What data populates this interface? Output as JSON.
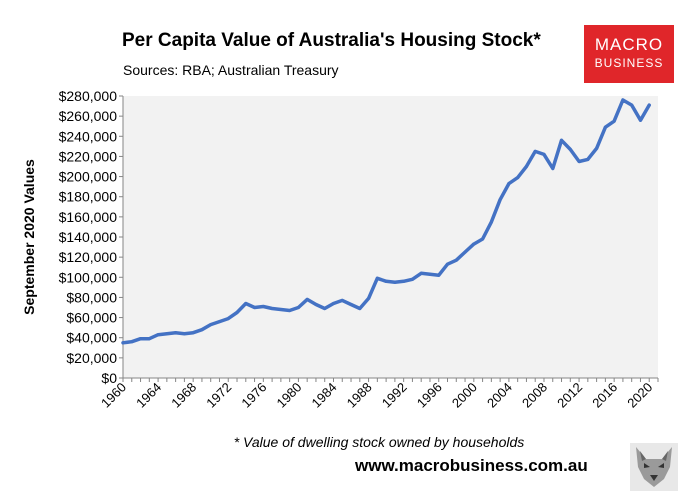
{
  "chart_data": {
    "type": "line",
    "title": "Per Capita Value of Australia's Housing Stock*",
    "subtitle": "Sources: RBA; Australian Treasury",
    "xlabel": "",
    "ylabel": "September 2020 Values",
    "footnote": "* Value of dwelling stock owned by households",
    "xlim": [
      1960,
      2021
    ],
    "ylim": [
      0,
      280000
    ],
    "ytick_labels": [
      "$0",
      "$20,000",
      "$40,000",
      "$60,000",
      "$80,000",
      "$100,000",
      "$120,000",
      "$140,000",
      "$160,000",
      "$180,000",
      "$200,000",
      "$220,000",
      "$240,000",
      "$260,000",
      "$280,000"
    ],
    "xtick_labels": [
      "1960",
      "1964",
      "1968",
      "1972",
      "1976",
      "1980",
      "1984",
      "1988",
      "1992",
      "1996",
      "2000",
      "2004",
      "2008",
      "2012",
      "2016",
      "2020"
    ],
    "grid": false,
    "legend": "none",
    "series_color": "#4472c4",
    "x": [
      1960,
      1961,
      1962,
      1963,
      1964,
      1965,
      1966,
      1967,
      1968,
      1969,
      1970,
      1971,
      1972,
      1973,
      1974,
      1975,
      1976,
      1977,
      1978,
      1979,
      1980,
      1981,
      1982,
      1983,
      1984,
      1985,
      1986,
      1987,
      1988,
      1989,
      1990,
      1991,
      1992,
      1993,
      1994,
      1995,
      1996,
      1997,
      1998,
      1999,
      2000,
      2001,
      2002,
      2003,
      2004,
      2005,
      2006,
      2007,
      2008,
      2009,
      2010,
      2011,
      2012,
      2013,
      2014,
      2015,
      2016,
      2017,
      2018,
      2019,
      2020
    ],
    "values": [
      35000,
      36000,
      39000,
      39000,
      43000,
      44000,
      45000,
      44000,
      45000,
      48000,
      53000,
      56000,
      59000,
      65000,
      74000,
      70000,
      71000,
      69000,
      68000,
      67000,
      70000,
      78000,
      73000,
      69000,
      74000,
      77000,
      73000,
      69000,
      79000,
      99000,
      96000,
      95000,
      96000,
      98000,
      104000,
      103000,
      102000,
      113000,
      117000,
      125000,
      133000,
      138000,
      155000,
      177000,
      193000,
      199000,
      210000,
      225000,
      222000,
      208000,
      236000,
      227000,
      215000,
      217000,
      228000,
      249000,
      255000,
      276000,
      271000,
      256000,
      271000
    ]
  },
  "branding": {
    "logo_line1": "MACRO",
    "logo_line2": "BUSINESS",
    "logo_color": "#e0262a",
    "website": "www.macrobusiness.com.au",
    "wolf_image": "wolf-icon"
  }
}
